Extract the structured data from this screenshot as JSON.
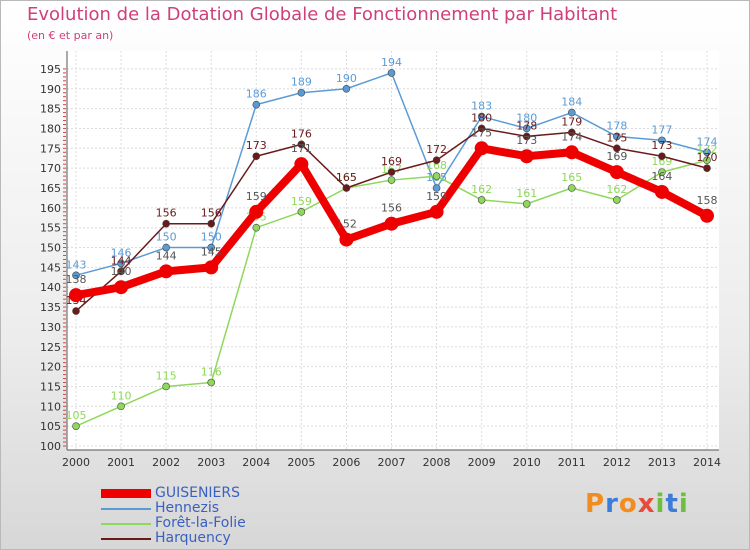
{
  "chart_data": {
    "type": "line",
    "title": "Evolution de la Dotation Globale de Fonctionnement par Habitant",
    "subtitle": "(en € et par an)",
    "xlabel": "",
    "ylabel": "",
    "categories": [
      "2000",
      "2001",
      "2002",
      "2003",
      "2004",
      "2005",
      "2006",
      "2007",
      "2008",
      "2009",
      "2010",
      "2011",
      "2012",
      "2013",
      "2014"
    ],
    "ylim": [
      100,
      195
    ],
    "yticks": [
      100,
      105,
      110,
      115,
      120,
      125,
      130,
      135,
      140,
      145,
      150,
      155,
      160,
      165,
      170,
      175,
      180,
      185,
      190,
      195
    ],
    "grid": true,
    "series": [
      {
        "name": "Hennezis",
        "color": "#5b9bd5",
        "values": [
          143,
          146,
          150,
          150,
          186,
          189,
          190,
          194,
          165,
          183,
          180,
          184,
          178,
          177,
          174
        ]
      },
      {
        "name": "Forêt-la-Folie",
        "color": "#8ed85b",
        "values": [
          105,
          110,
          115,
          116,
          155,
          159,
          165,
          167,
          168,
          162,
          161,
          165,
          162,
          169,
          172
        ]
      },
      {
        "name": "Harquency",
        "color": "#6b1a1a",
        "values": [
          134,
          144,
          156,
          156,
          173,
          176,
          165,
          169,
          172,
          180,
          178,
          179,
          175,
          173,
          170
        ]
      },
      {
        "name": "GUISENIERS",
        "color": "#ee0000",
        "values": [
          138,
          140,
          144,
          145,
          159,
          171,
          152,
          156,
          159,
          175,
          173,
          174,
          169,
          164,
          158
        ]
      }
    ],
    "legend": [
      "GUISENIERS",
      "Hennezis",
      "Forêt-la-Folie",
      "Harquency"
    ],
    "legend_position": "bottom-left"
  },
  "brand": {
    "letters": [
      "P",
      "r",
      "o",
      "x",
      "i",
      "t",
      "i"
    ],
    "colors": [
      "#f28c1e",
      "#3b7dd8",
      "#f28c1e",
      "#e84a3c",
      "#6cbf3f",
      "#3b7dd8",
      "#6cbf3f"
    ]
  }
}
